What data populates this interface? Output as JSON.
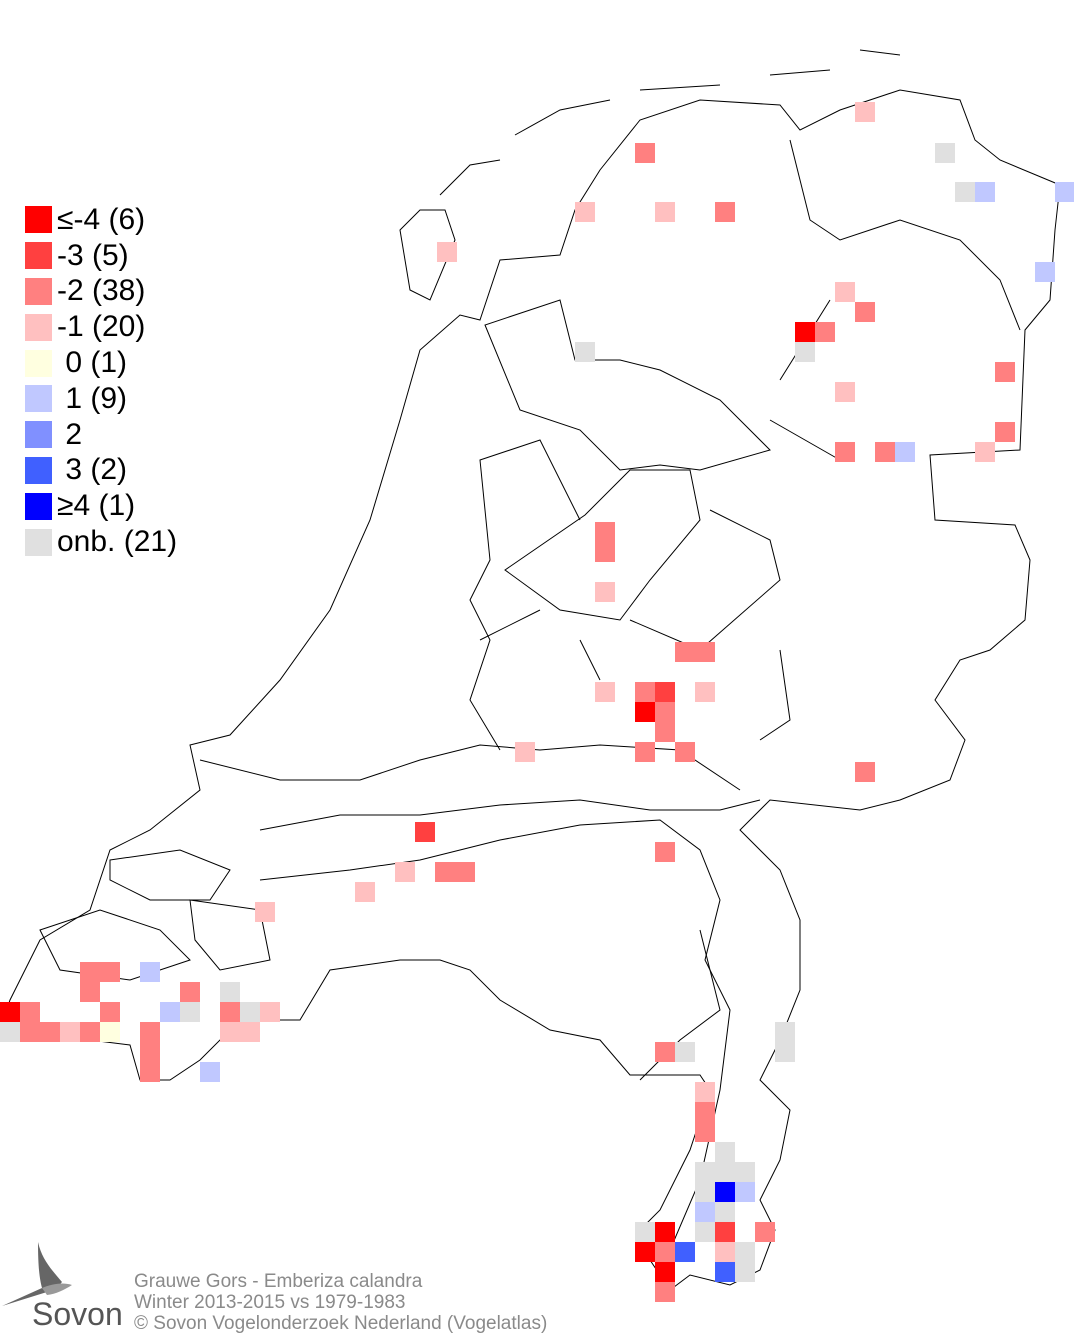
{
  "legend": [
    {
      "label": "≤-4 (6)",
      "color": "#ff0000",
      "value": "-4"
    },
    {
      "label": "-3 (5)",
      "color": "#ff4040",
      "value": "-3"
    },
    {
      "label": "-2 (38)",
      "color": "#ff8080",
      "value": "-2"
    },
    {
      "label": "-1 (20)",
      "color": "#ffc0c0",
      "value": "-1"
    },
    {
      "label": " 0 (1)",
      "color": "#ffffe0",
      "value": "0"
    },
    {
      "label": " 1 (9)",
      "color": "#c0c8ff",
      "value": "1"
    },
    {
      "label": " 2",
      "color": "#8090ff",
      "value": "2"
    },
    {
      "label": " 3 (2)",
      "color": "#4060ff",
      "value": "3"
    },
    {
      "label": "≥4 (1)",
      "color": "#0000ff",
      "value": "4"
    },
    {
      "label": "onb. (21)",
      "color": "#e0e0e0",
      "value": "onb"
    }
  ],
  "footer": {
    "line1": "Grauwe Gors - Emberiza calandra",
    "line2": "Winter 2013-2015 vs 1979-1983",
    "line3": "© Sovon Vogelonderzoek Nederland (Vogelatlas)"
  },
  "logo": {
    "text": "Sovon",
    "icon": "swallow-icon"
  }
}
